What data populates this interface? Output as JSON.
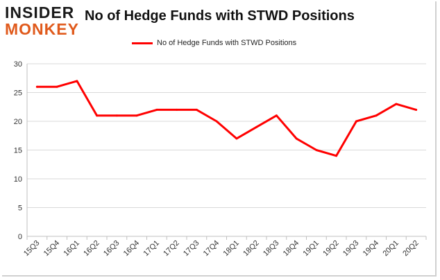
{
  "logo": {
    "line1": "INSIDER",
    "line2": "MONKEY"
  },
  "chart_data": {
    "type": "line",
    "title": "No of Hedge Funds with STWD Positions",
    "xlabel": "",
    "ylabel": "",
    "categories": [
      "15Q3",
      "15Q4",
      "16Q1",
      "16Q2",
      "16Q3",
      "16Q4",
      "17Q1",
      "17Q2",
      "17Q3",
      "17Q4",
      "18Q1",
      "18Q2",
      "18Q3",
      "18Q4",
      "19Q1",
      "19Q2",
      "19Q3",
      "19Q4",
      "20Q1",
      "20Q2"
    ],
    "series": [
      {
        "name": "No of Hedge Funds with STWD Positions",
        "color": "#ff0000",
        "values": [
          26,
          26,
          27,
          21,
          21,
          21,
          22,
          22,
          22,
          20,
          17,
          19,
          21,
          17,
          15,
          14,
          20,
          21,
          23,
          22
        ]
      }
    ],
    "ylim": [
      0,
      30
    ],
    "yticks": [
      0,
      5,
      10,
      15,
      20,
      25,
      30
    ],
    "grid": "horizontal",
    "legend": "top-center"
  }
}
